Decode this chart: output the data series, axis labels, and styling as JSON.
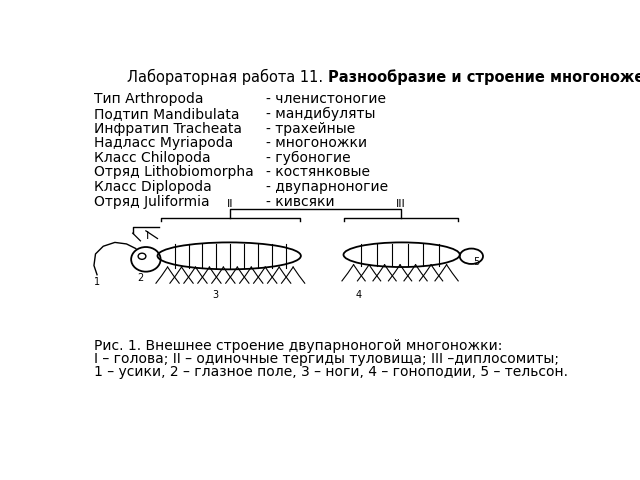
{
  "title_normal": "Лабораторная работа 11. ",
  "title_bold": "Разнообразие и строение многоножек и насекомых",
  "taxonomy_left": [
    "Тип Arthropoda",
    "Подтип Mandibulata",
    "Инфратип Tracheata",
    "Надласс Myriapoda",
    "Класс Chilopoda",
    "Отряд Lithobiomorpha",
    "Класс Diplopoda",
    "Отряд Juliformia"
  ],
  "taxonomy_right": [
    "- членистоногие",
    "- мандибуляты",
    "- трахейные",
    "- многоножки",
    "- губоногие",
    "- костянковые",
    "- двупарноногие",
    "- кивсяки"
  ],
  "caption_line1": "Рис. 1. Внешнее строение двупарноногой многоножки:",
  "caption_line2": "I – голова; II – одиночные тергиды туловища; III –диплосомиты;",
  "caption_line3": "1 – усики, 2 – глазное поле, 3 – ноги, 4 – гоноподии, 5 – тельсон.",
  "bg_color": "#ffffff",
  "text_color": "#000000",
  "title_fontsize": 10.5,
  "body_fontsize": 10,
  "caption_fontsize": 10
}
